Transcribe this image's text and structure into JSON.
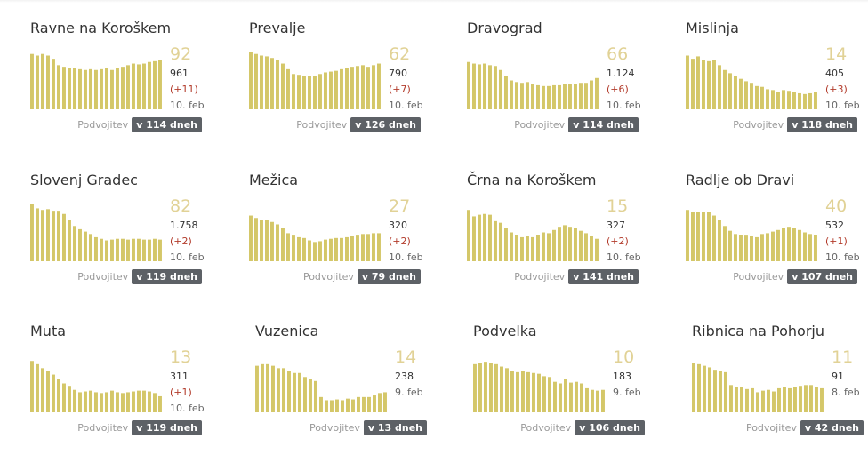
{
  "doubling_label": "Podvojitev",
  "chart_data": [
    {
      "type": "bar",
      "title": "Ravne na Koroškem",
      "active": "92",
      "total": "961",
      "delta": "(+11)",
      "date": "10. feb",
      "doubling": "v 114 dneh",
      "values": [
        69,
        67,
        69,
        67,
        63,
        55,
        53,
        52,
        51,
        50,
        49,
        50,
        49,
        50,
        51,
        49,
        51,
        53,
        55,
        57,
        56,
        57,
        59,
        60,
        61
      ]
    },
    {
      "type": "bar",
      "title": "Prevalje",
      "active": "62",
      "total": "790",
      "delta": "(+7)",
      "date": "10. feb",
      "doubling": "v 126 dneh",
      "values": [
        71,
        69,
        67,
        66,
        64,
        62,
        57,
        50,
        44,
        43,
        42,
        41,
        42,
        44,
        46,
        47,
        48,
        50,
        51,
        53,
        54,
        55,
        53,
        55,
        57
      ]
    },
    {
      "type": "bar",
      "title": "Dravograd",
      "active": "66",
      "total": "1.124",
      "delta": "(+6)",
      "date": "10. feb",
      "doubling": "v 114 dneh",
      "values": [
        59,
        57,
        56,
        57,
        55,
        54,
        49,
        42,
        36,
        34,
        33,
        34,
        32,
        30,
        29,
        29,
        30,
        30,
        31,
        31,
        32,
        33,
        33,
        36,
        39
      ]
    },
    {
      "type": "bar",
      "title": "Mislinja",
      "active": "14",
      "total": "405",
      "delta": "(+3)",
      "date": "10. feb",
      "doubling": "v 118 dneh",
      "values": [
        67,
        63,
        66,
        61,
        60,
        61,
        55,
        49,
        45,
        42,
        38,
        35,
        33,
        29,
        28,
        25,
        24,
        22,
        24,
        23,
        22,
        20,
        19,
        20,
        22
      ]
    },
    {
      "type": "bar",
      "title": "Slovenj Gradec",
      "active": "82",
      "total": "1.758",
      "delta": "(+2)",
      "date": "10. feb",
      "doubling": "v 119 dneh",
      "values": [
        71,
        66,
        64,
        65,
        63,
        63,
        59,
        51,
        44,
        40,
        37,
        34,
        30,
        28,
        26,
        27,
        28,
        28,
        27,
        28,
        28,
        27,
        27,
        28,
        27
      ]
    },
    {
      "type": "bar",
      "title": "Mežica",
      "active": "27",
      "total": "320",
      "delta": "(+2)",
      "date": "10. feb",
      "doubling": "v 79 dneh",
      "values": [
        57,
        54,
        52,
        51,
        49,
        46,
        41,
        35,
        32,
        30,
        29,
        26,
        24,
        25,
        27,
        28,
        29,
        29,
        30,
        31,
        32,
        34,
        34,
        35,
        35
      ]
    },
    {
      "type": "bar",
      "title": "Črna na Koroškem",
      "active": "15",
      "total": "327",
      "delta": "(+2)",
      "date": "10. feb",
      "doubling": "v 141 dneh",
      "values": [
        64,
        56,
        58,
        59,
        58,
        50,
        48,
        42,
        36,
        33,
        30,
        31,
        30,
        33,
        36,
        35,
        39,
        43,
        45,
        43,
        41,
        38,
        35,
        31,
        28
      ]
    },
    {
      "type": "bar",
      "title": "Radlje ob Dravi",
      "active": "40",
      "total": "532",
      "delta": "(+1)",
      "date": "10. feb",
      "doubling": "v 107 dneh",
      "values": [
        64,
        61,
        62,
        62,
        61,
        57,
        51,
        44,
        38,
        34,
        33,
        32,
        31,
        30,
        34,
        35,
        37,
        39,
        41,
        43,
        41,
        39,
        36,
        34,
        33
      ]
    },
    {
      "type": "bar",
      "title": "Muta",
      "active": "13",
      "total": "311",
      "delta": "(+1)",
      "date": "10. feb",
      "doubling": "v 119 dneh",
      "values": [
        64,
        60,
        55,
        52,
        47,
        41,
        36,
        33,
        28,
        25,
        26,
        27,
        25,
        24,
        25,
        27,
        25,
        24,
        25,
        26,
        27,
        27,
        26,
        24,
        20
      ]
    },
    {
      "type": "bar",
      "title": "Vuzenica",
      "active": "14",
      "total": "238",
      "delta": "",
      "date": "9. feb",
      "doubling": "v 13 dneh",
      "values": [
        58,
        60,
        60,
        58,
        55,
        55,
        52,
        49,
        49,
        44,
        41,
        39,
        19,
        15,
        15,
        16,
        15,
        17,
        16,
        19,
        19,
        19,
        21,
        24,
        25
      ]
    },
    {
      "type": "bar",
      "title": "Podvelka",
      "active": "10",
      "total": "183",
      "delta": "",
      "date": "9. feb",
      "doubling": "v 106 dneh",
      "values": [
        60,
        62,
        63,
        62,
        60,
        57,
        55,
        52,
        50,
        51,
        50,
        49,
        48,
        45,
        44,
        38,
        36,
        42,
        37,
        38,
        36,
        30,
        28,
        27,
        28
      ]
    },
    {
      "type": "bar",
      "title": "Ribnica na Pohorju",
      "active": "11",
      "total": "91",
      "delta": "",
      "date": "8. feb",
      "doubling": "v 42 dneh",
      "values": [
        62,
        60,
        58,
        56,
        53,
        52,
        50,
        34,
        32,
        31,
        29,
        30,
        25,
        27,
        28,
        26,
        30,
        31,
        30,
        32,
        33,
        34,
        34,
        31,
        30
      ]
    }
  ]
}
